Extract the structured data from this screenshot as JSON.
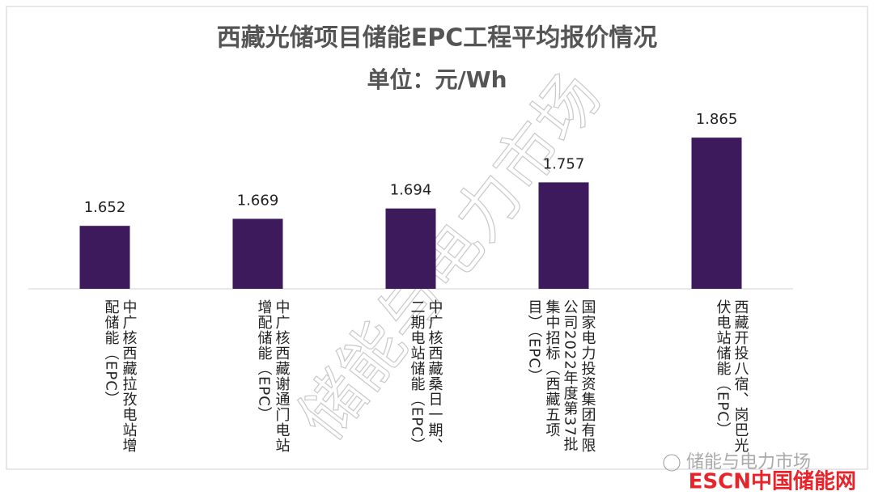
{
  "chart_data": {
    "type": "bar",
    "title": "西藏光储项目储能EPC工程平均报价情况",
    "subtitle": "单位：元/Wh",
    "categories": [
      "中广核西藏拉孜电站增配储能（EPC）",
      "中广核西藏谢通门电站增配储能（EPC）",
      "中广核西藏桑日一期、二期电站储能（EPC）",
      "国家电力投资集团有限公司2022年度第37批集中招标（西藏五项目）（EPC）",
      "西藏开投八宿、岗巴光伏电站储能（EPC）"
    ],
    "values": [
      1.652,
      1.669,
      1.694,
      1.757,
      1.865
    ],
    "color": "#3d1a5c",
    "ylim": [
      1.5,
      2.0
    ],
    "grid": false
  },
  "watermark": {
    "text": "储能与电力市场",
    "account": "储能与电力市场",
    "logo": "ESCN中国储能网"
  }
}
